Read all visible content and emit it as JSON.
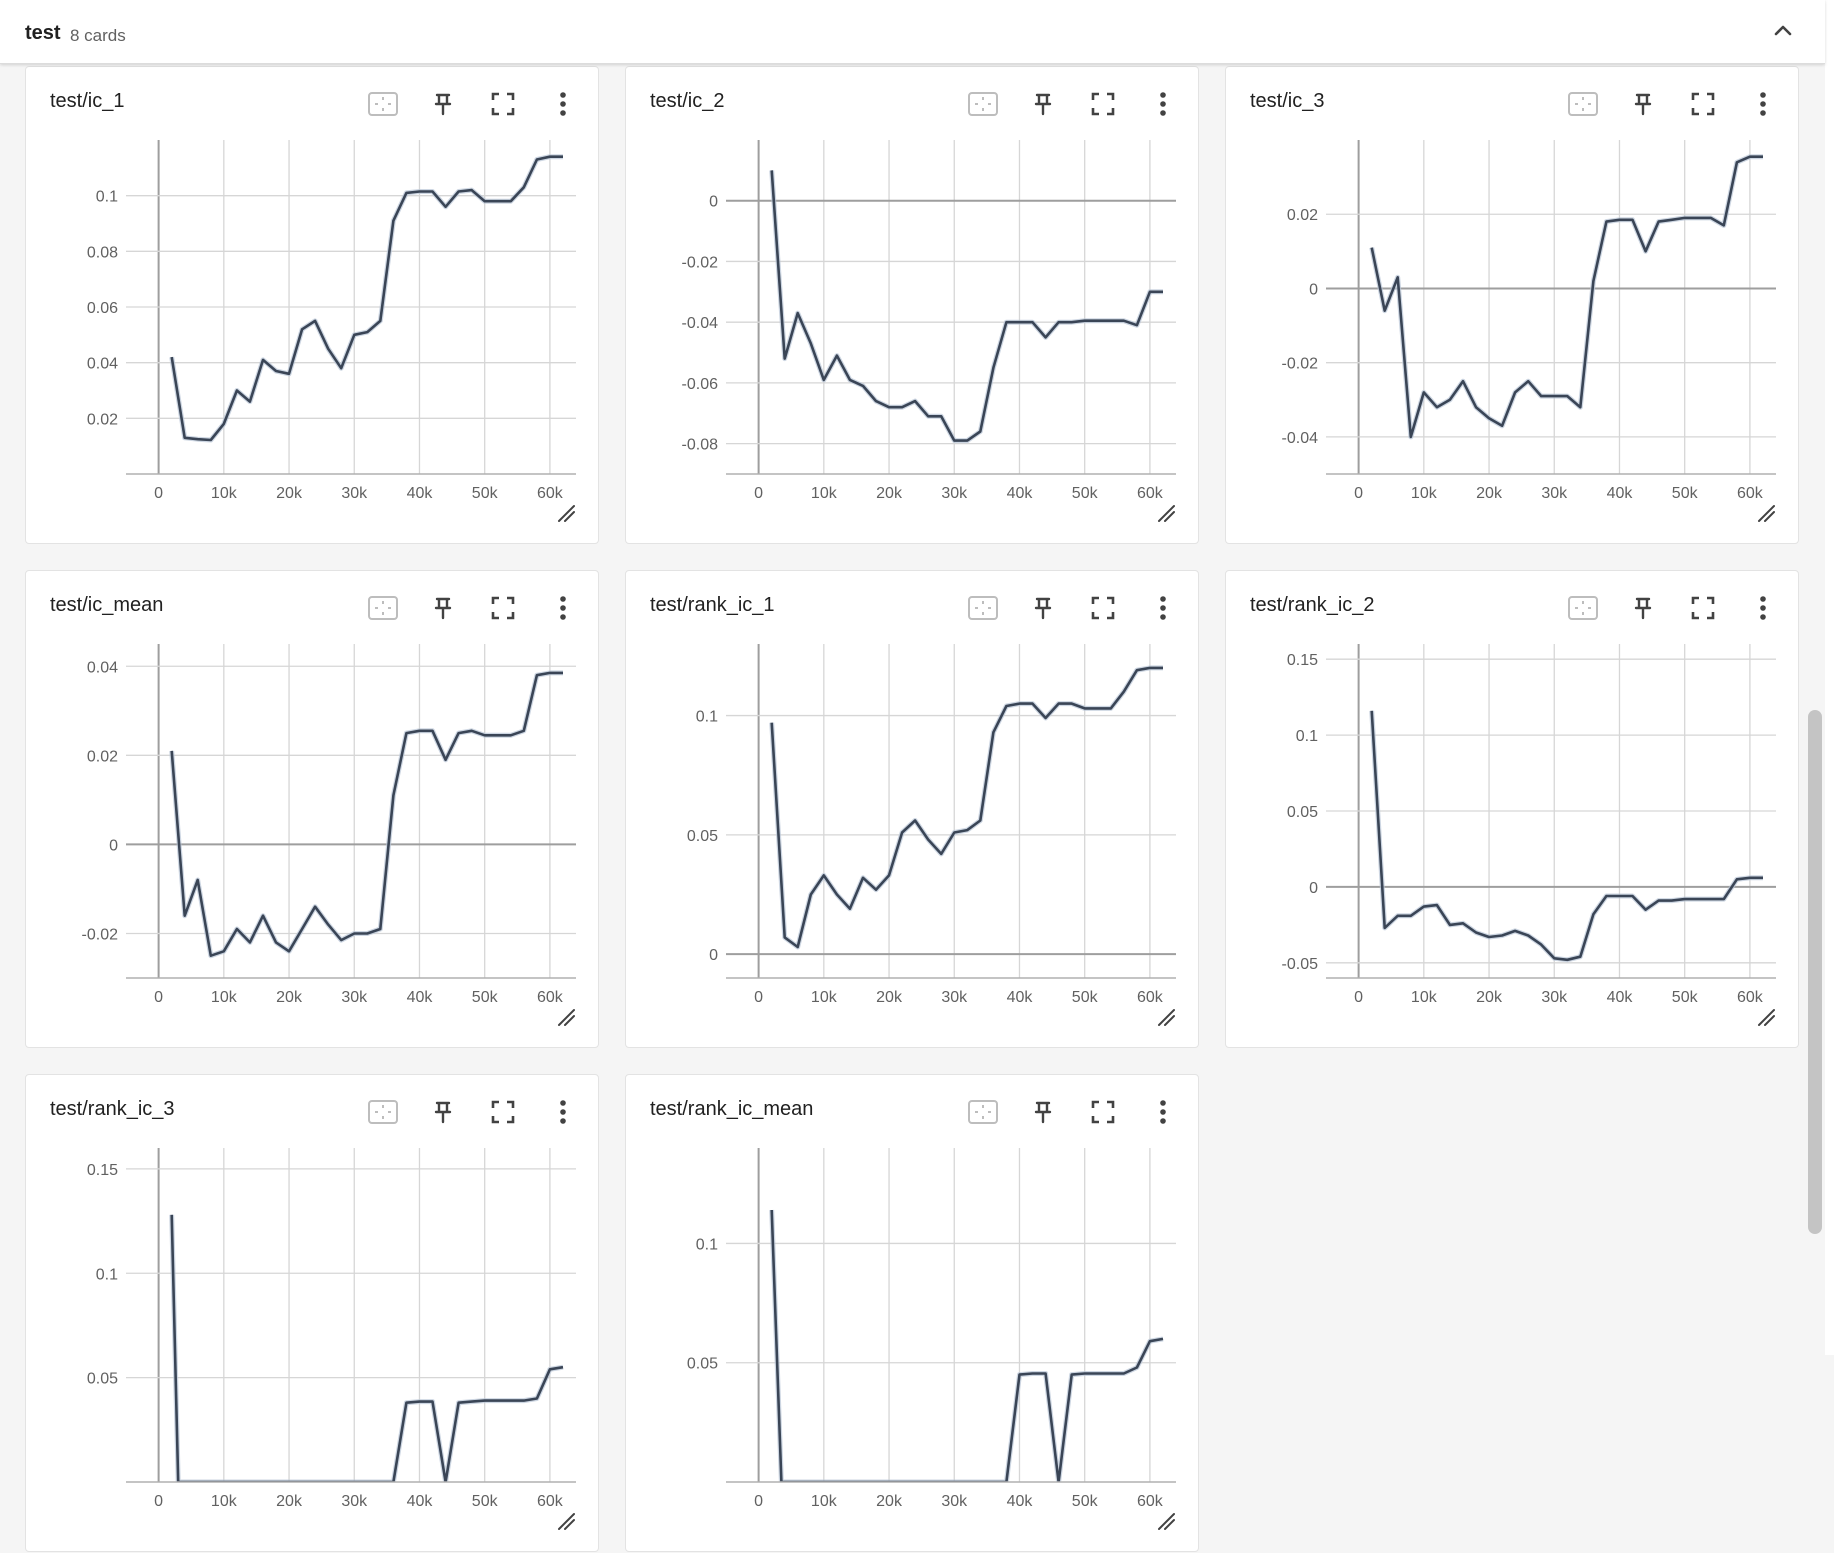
{
  "group": {
    "title": "test",
    "count_label": "8 cards"
  },
  "icons": {
    "collapse": "chevron-up-icon",
    "fit": "fit-to-domain-icon",
    "pin": "pin-icon",
    "fullscreen": "fullscreen-icon",
    "menu": "more-vert-icon",
    "resize": "resize-handle-icon"
  },
  "colors": {
    "line": "#3a4556",
    "smoothed_shadow": "#b8c4d6",
    "grid": "#d6d6d6",
    "zero_axis": "#9e9e9e"
  },
  "cards": [
    {
      "title": "test/ic_1"
    },
    {
      "title": "test/ic_2"
    },
    {
      "title": "test/ic_3"
    },
    {
      "title": "test/ic_mean"
    },
    {
      "title": "test/rank_ic_1"
    },
    {
      "title": "test/rank_ic_2"
    },
    {
      "title": "test/rank_ic_3"
    },
    {
      "title": "test/rank_ic_mean"
    }
  ],
  "chart_data": [
    {
      "type": "line",
      "title": "test/ic_1",
      "xlim": [
        -5000,
        64000
      ],
      "ylim": [
        0.0,
        0.12
      ],
      "xticks": [
        0,
        10000,
        20000,
        30000,
        40000,
        50000,
        60000
      ],
      "xtick_labels": [
        "0",
        "10k",
        "20k",
        "30k",
        "40k",
        "50k",
        "60k"
      ],
      "yticks": [
        0.02,
        0.04,
        0.06,
        0.08,
        0.1
      ],
      "ytick_labels": [
        "0.02",
        "0.04",
        "0.06",
        "0.08",
        "0.1"
      ],
      "x": [
        2000,
        4000,
        6000,
        8000,
        10000,
        12000,
        14000,
        16000,
        18000,
        20000,
        22000,
        24000,
        26000,
        28000,
        30000,
        32000,
        34000,
        36000,
        38000,
        40000,
        42000,
        44000,
        46000,
        48000,
        50000,
        52000,
        54000,
        56000,
        58000,
        60000,
        62000
      ],
      "y": [
        0.042,
        0.013,
        0.0125,
        0.0122,
        0.018,
        0.03,
        0.026,
        0.041,
        0.037,
        0.036,
        0.052,
        0.055,
        0.045,
        0.038,
        0.05,
        0.051,
        0.055,
        0.091,
        0.101,
        0.1015,
        0.1015,
        0.096,
        0.1015,
        0.102,
        0.098,
        0.098,
        0.098,
        0.103,
        0.113,
        0.114,
        0.114
      ]
    },
    {
      "type": "line",
      "title": "test/ic_2",
      "xlim": [
        -5000,
        64000
      ],
      "ylim": [
        -0.09,
        0.02
      ],
      "xticks": [
        0,
        10000,
        20000,
        30000,
        40000,
        50000,
        60000
      ],
      "xtick_labels": [
        "0",
        "10k",
        "20k",
        "30k",
        "40k",
        "50k",
        "60k"
      ],
      "yticks": [
        -0.08,
        -0.06,
        -0.04,
        -0.02,
        0
      ],
      "ytick_labels": [
        "-0.08",
        "-0.06",
        "-0.04",
        "-0.02",
        "0"
      ],
      "x": [
        2000,
        4000,
        6000,
        8000,
        10000,
        12000,
        14000,
        16000,
        18000,
        20000,
        22000,
        24000,
        26000,
        28000,
        30000,
        32000,
        34000,
        36000,
        38000,
        40000,
        42000,
        44000,
        46000,
        48000,
        50000,
        52000,
        54000,
        56000,
        58000,
        60000,
        62000
      ],
      "y": [
        0.01,
        -0.052,
        -0.037,
        -0.047,
        -0.059,
        -0.051,
        -0.059,
        -0.061,
        -0.066,
        -0.068,
        -0.068,
        -0.066,
        -0.071,
        -0.071,
        -0.079,
        -0.079,
        -0.076,
        -0.055,
        -0.04,
        -0.04,
        -0.04,
        -0.045,
        -0.04,
        -0.04,
        -0.0395,
        -0.0395,
        -0.0395,
        -0.0395,
        -0.041,
        -0.03,
        -0.03
      ]
    },
    {
      "type": "line",
      "title": "test/ic_3",
      "xlim": [
        -5000,
        64000
      ],
      "ylim": [
        -0.05,
        0.04
      ],
      "xticks": [
        0,
        10000,
        20000,
        30000,
        40000,
        50000,
        60000
      ],
      "xtick_labels": [
        "0",
        "10k",
        "20k",
        "30k",
        "40k",
        "50k",
        "60k"
      ],
      "yticks": [
        -0.04,
        -0.02,
        0,
        0.02
      ],
      "ytick_labels": [
        "-0.04",
        "-0.02",
        "0",
        "0.02"
      ],
      "x": [
        2000,
        4000,
        6000,
        8000,
        10000,
        12000,
        14000,
        16000,
        18000,
        20000,
        22000,
        24000,
        26000,
        28000,
        30000,
        32000,
        34000,
        36000,
        38000,
        40000,
        42000,
        44000,
        46000,
        48000,
        50000,
        52000,
        54000,
        56000,
        58000,
        60000,
        62000
      ],
      "y": [
        0.011,
        -0.006,
        0.003,
        -0.04,
        -0.028,
        -0.032,
        -0.03,
        -0.025,
        -0.032,
        -0.035,
        -0.037,
        -0.028,
        -0.025,
        -0.029,
        -0.029,
        -0.029,
        -0.032,
        0.002,
        0.018,
        0.0185,
        0.0185,
        0.01,
        0.018,
        0.0185,
        0.019,
        0.019,
        0.019,
        0.017,
        0.034,
        0.0355,
        0.0355
      ]
    },
    {
      "type": "line",
      "title": "test/ic_mean",
      "xlim": [
        -5000,
        64000
      ],
      "ylim": [
        -0.03,
        0.045
      ],
      "xticks": [
        0,
        10000,
        20000,
        30000,
        40000,
        50000,
        60000
      ],
      "xtick_labels": [
        "0",
        "10k",
        "20k",
        "30k",
        "40k",
        "50k",
        "60k"
      ],
      "yticks": [
        -0.02,
        0,
        0.02,
        0.04
      ],
      "ytick_labels": [
        "-0.02",
        "0",
        "0.02",
        "0.04"
      ],
      "x": [
        2000,
        4000,
        6000,
        8000,
        10000,
        12000,
        14000,
        16000,
        18000,
        20000,
        22000,
        24000,
        26000,
        28000,
        30000,
        32000,
        34000,
        36000,
        38000,
        40000,
        42000,
        44000,
        46000,
        48000,
        50000,
        52000,
        54000,
        56000,
        58000,
        60000,
        62000
      ],
      "y": [
        0.021,
        -0.016,
        -0.008,
        -0.025,
        -0.024,
        -0.019,
        -0.022,
        -0.016,
        -0.022,
        -0.024,
        -0.019,
        -0.014,
        -0.018,
        -0.0215,
        -0.02,
        -0.02,
        -0.019,
        0.011,
        0.025,
        0.0255,
        0.0255,
        0.019,
        0.025,
        0.0255,
        0.0245,
        0.0245,
        0.0245,
        0.0255,
        0.038,
        0.0385,
        0.0385
      ]
    },
    {
      "type": "line",
      "title": "test/rank_ic_1",
      "xlim": [
        -5000,
        64000
      ],
      "ylim": [
        -0.01,
        0.13
      ],
      "xticks": [
        0,
        10000,
        20000,
        30000,
        40000,
        50000,
        60000
      ],
      "xtick_labels": [
        "0",
        "10k",
        "20k",
        "30k",
        "40k",
        "50k",
        "60k"
      ],
      "yticks": [
        0,
        0.05,
        0.1
      ],
      "ytick_labels": [
        "0",
        "0.05",
        "0.1"
      ],
      "x": [
        2000,
        4000,
        6000,
        8000,
        10000,
        12000,
        14000,
        16000,
        18000,
        20000,
        22000,
        24000,
        26000,
        28000,
        30000,
        32000,
        34000,
        36000,
        38000,
        40000,
        42000,
        44000,
        46000,
        48000,
        50000,
        52000,
        54000,
        56000,
        58000,
        60000,
        62000
      ],
      "y": [
        0.097,
        0.007,
        0.003,
        0.025,
        0.033,
        0.025,
        0.019,
        0.032,
        0.027,
        0.033,
        0.051,
        0.056,
        0.048,
        0.042,
        0.051,
        0.052,
        0.056,
        0.093,
        0.104,
        0.105,
        0.105,
        0.099,
        0.105,
        0.105,
        0.103,
        0.103,
        0.103,
        0.11,
        0.119,
        0.12,
        0.12
      ]
    },
    {
      "type": "line",
      "title": "test/rank_ic_2",
      "xlim": [
        -5000,
        64000
      ],
      "ylim": [
        -0.06,
        0.16
      ],
      "xticks": [
        0,
        10000,
        20000,
        30000,
        40000,
        50000,
        60000
      ],
      "xtick_labels": [
        "0",
        "10k",
        "20k",
        "30k",
        "40k",
        "50k",
        "60k"
      ],
      "yticks": [
        -0.05,
        0,
        0.05,
        0.1,
        0.15
      ],
      "ytick_labels": [
        "-0.05",
        "0",
        "0.05",
        "0.1",
        "0.15"
      ],
      "x": [
        2000,
        4000,
        6000,
        8000,
        10000,
        12000,
        14000,
        16000,
        18000,
        20000,
        22000,
        24000,
        26000,
        28000,
        30000,
        32000,
        34000,
        36000,
        38000,
        40000,
        42000,
        44000,
        46000,
        48000,
        50000,
        52000,
        54000,
        56000,
        58000,
        60000,
        62000
      ],
      "y": [
        0.116,
        -0.027,
        -0.019,
        -0.019,
        -0.013,
        -0.012,
        -0.025,
        -0.024,
        -0.03,
        -0.033,
        -0.032,
        -0.029,
        -0.032,
        -0.038,
        -0.047,
        -0.048,
        -0.046,
        -0.018,
        -0.006,
        -0.006,
        -0.006,
        -0.015,
        -0.009,
        -0.009,
        -0.008,
        -0.008,
        -0.008,
        -0.008,
        0.005,
        0.006,
        0.006
      ]
    },
    {
      "type": "line",
      "title": "test/rank_ic_3",
      "xlim": [
        -5000,
        64000
      ],
      "ylim": [
        0.0,
        0.16
      ],
      "xticks": [
        0,
        10000,
        20000,
        30000,
        40000,
        50000,
        60000
      ],
      "xtick_labels": [
        "0",
        "10k",
        "20k",
        "30k",
        "40k",
        "50k",
        "60k"
      ],
      "yticks": [
        0.05,
        0.1,
        0.15
      ],
      "ytick_labels": [
        "0.05",
        "0.1",
        "0.15"
      ],
      "x": [
        2000,
        3000,
        36000,
        38000,
        40000,
        42000,
        44000,
        46000,
        48000,
        50000,
        52000,
        54000,
        56000,
        58000,
        60000,
        62000
      ],
      "y": [
        0.128,
        0.0,
        0.0,
        0.038,
        0.0385,
        0.0385,
        0.0,
        0.038,
        0.0385,
        0.039,
        0.039,
        0.039,
        0.039,
        0.04,
        0.054,
        0.055
      ]
    },
    {
      "type": "line",
      "title": "test/rank_ic_mean",
      "xlim": [
        -5000,
        64000
      ],
      "ylim": [
        0.0,
        0.14
      ],
      "xticks": [
        0,
        10000,
        20000,
        30000,
        40000,
        50000,
        60000
      ],
      "xtick_labels": [
        "0",
        "10k",
        "20k",
        "30k",
        "40k",
        "50k",
        "60k"
      ],
      "yticks": [
        0.05,
        0.1
      ],
      "ytick_labels": [
        "0.05",
        "0.1"
      ],
      "x": [
        2000,
        3500,
        38000,
        40000,
        42000,
        44000,
        46000,
        48000,
        50000,
        52000,
        54000,
        56000,
        58000,
        60000,
        62000
      ],
      "y": [
        0.114,
        0.0,
        0.0,
        0.045,
        0.0455,
        0.0455,
        0.0,
        0.045,
        0.0455,
        0.0455,
        0.0455,
        0.0455,
        0.048,
        0.059,
        0.06
      ]
    }
  ]
}
